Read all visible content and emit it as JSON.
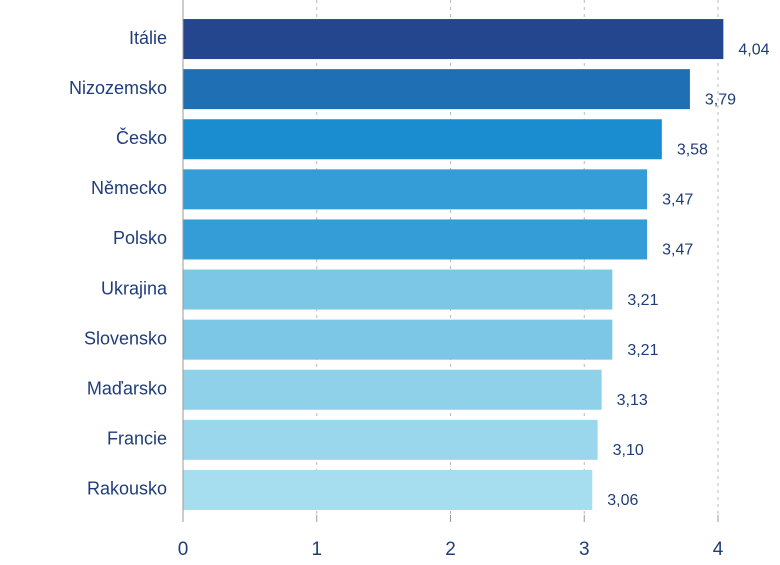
{
  "chart_data": {
    "type": "bar",
    "orientation": "horizontal",
    "categories": [
      "Itálie",
      "Nizozemsko",
      "Česko",
      "Německo",
      "Polsko",
      "Ukrajina",
      "Slovensko",
      "Maďarsko",
      "Francie",
      "Rakousko"
    ],
    "values": [
      4.04,
      3.79,
      3.58,
      3.47,
      3.47,
      3.21,
      3.21,
      3.13,
      3.1,
      3.06
    ],
    "value_labels": [
      "4,04",
      "3,79",
      "3,58",
      "3,47",
      "3,47",
      "3,21",
      "3,21",
      "3,13",
      "3,10",
      "3,06"
    ],
    "colors": [
      "#23468f",
      "#1f6fb5",
      "#1a8dd0",
      "#349dd8",
      "#349dd8",
      "#7cc6e6",
      "#7cc6e6",
      "#90d1ea",
      "#9ad6ec",
      "#a6ddef"
    ],
    "xlim": [
      0,
      4
    ],
    "xticks": [
      0,
      1,
      2,
      3,
      4
    ],
    "grid": true
  }
}
